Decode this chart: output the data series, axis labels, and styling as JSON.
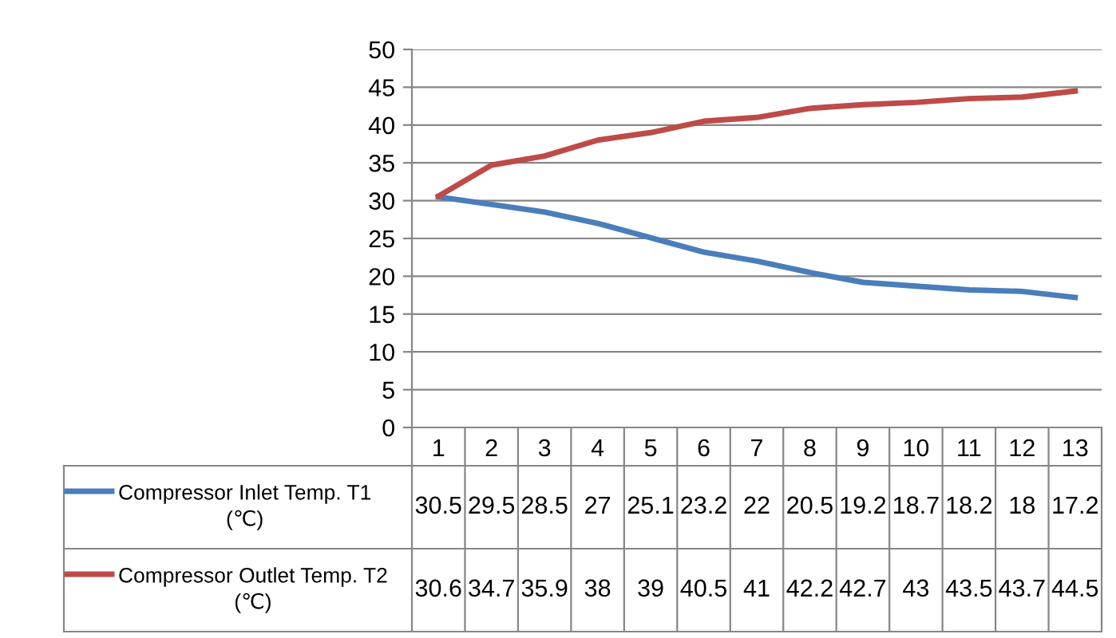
{
  "chart_data": {
    "type": "line",
    "categories": [
      "1",
      "2",
      "3",
      "4",
      "5",
      "6",
      "7",
      "8",
      "9",
      "10",
      "11",
      "12",
      "13"
    ],
    "series": [
      {
        "name": "Compressor Inlet Temp. T1 (℃)",
        "color": "#4a7ebb",
        "values": [
          30.5,
          29.5,
          28.5,
          27,
          25.1,
          23.2,
          22,
          20.5,
          19.2,
          18.7,
          18.2,
          18,
          17.2
        ]
      },
      {
        "name": "Compressor Outlet Temp. T2 (℃)",
        "color": "#be4b48",
        "values": [
          30.6,
          34.7,
          35.9,
          38,
          39,
          40.5,
          41,
          42.2,
          42.7,
          43,
          43.5,
          43.7,
          44.5
        ]
      }
    ],
    "ylim": [
      0,
      50
    ],
    "yticks": [
      0,
      5,
      10,
      15,
      20,
      25,
      30,
      35,
      40,
      45,
      50
    ],
    "grid": "y",
    "legend": "bottom",
    "data_labels": true,
    "marker": "none",
    "line_style": "solid"
  }
}
